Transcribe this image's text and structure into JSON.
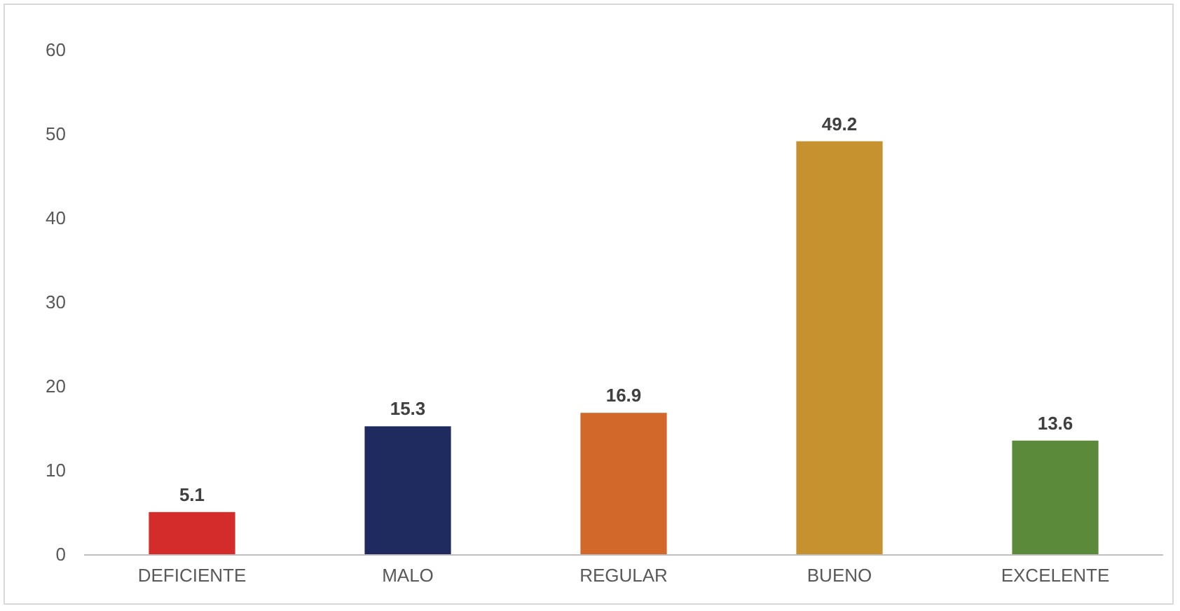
{
  "chart_data": {
    "type": "bar",
    "categories": [
      "DEFICIENTE",
      "MALO",
      "REGULAR",
      "BUENO",
      "EXCELENTE"
    ],
    "values": [
      5.1,
      15.3,
      16.9,
      49.2,
      13.6
    ],
    "colors": [
      "#d42b2b",
      "#1f2b5e",
      "#d2692a",
      "#c6922f",
      "#5b8a3a"
    ],
    "ylim": [
      0,
      60
    ],
    "yticks": [
      0,
      10,
      20,
      30,
      40,
      50,
      60
    ],
    "grid": false,
    "data_labels": true
  }
}
